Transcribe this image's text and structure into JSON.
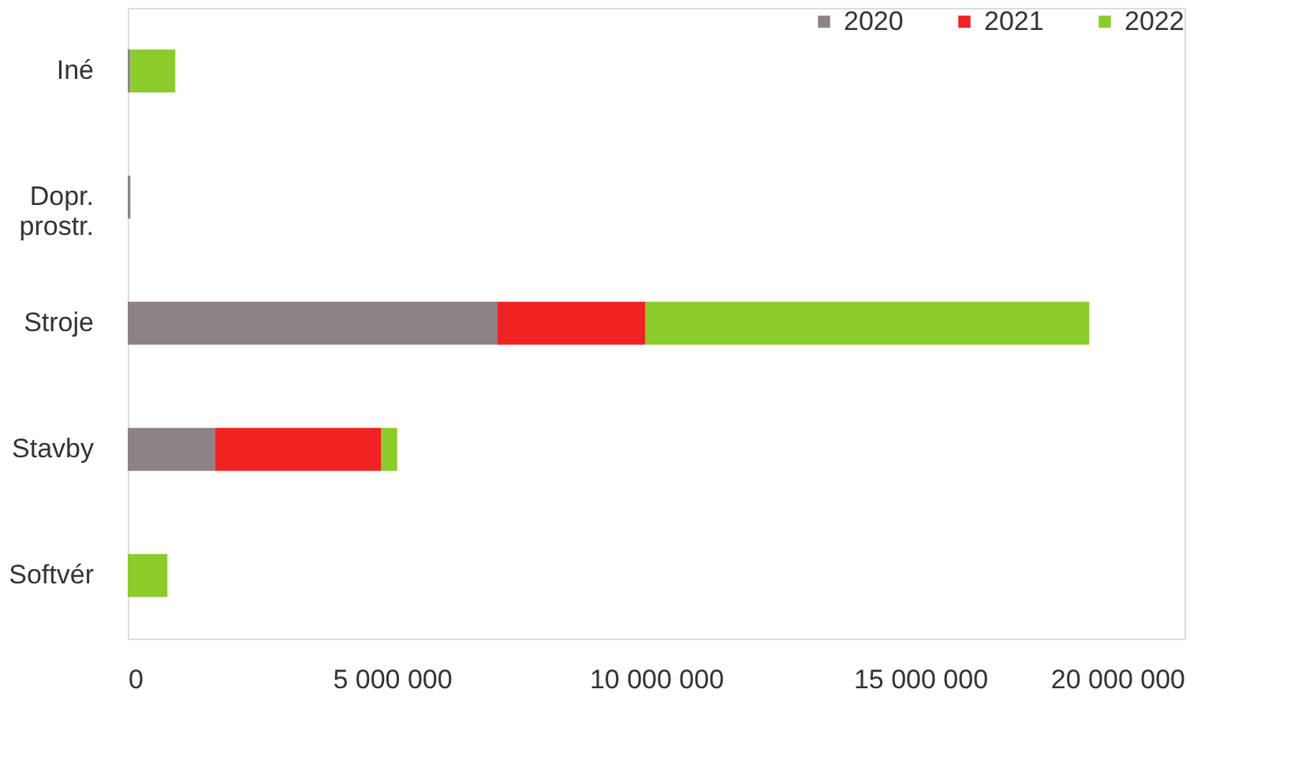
{
  "chart_data": {
    "type": "bar",
    "orientation": "horizontal",
    "stacked": true,
    "legend": "top right",
    "grid": false,
    "categories": [
      "Iné",
      "Dopr. prostr.",
      "Stroje",
      "Stavby",
      "Softvér"
    ],
    "series": [
      {
        "name": "2020",
        "color": "#8c8389",
        "values": [
          50000,
          50000,
          7000000,
          1650000,
          0
        ]
      },
      {
        "name": "2021",
        "color": "#f02323",
        "values": [
          0,
          0,
          2800000,
          3150000,
          0
        ]
      },
      {
        "name": "2022",
        "color": "#8ccb2c",
        "values": [
          850000,
          0,
          8400000,
          300000,
          750000
        ]
      }
    ],
    "xlim": [
      0,
      20000000
    ],
    "xticks": [
      0,
      {
        "value": 5000000,
        "label": "5 000 000"
      },
      {
        "value": 10000000,
        "label": "10 000 000"
      },
      {
        "value": 15000000,
        "label": "15 000 000"
      },
      {
        "value": 20000000,
        "label": "20 000 000"
      }
    ]
  }
}
